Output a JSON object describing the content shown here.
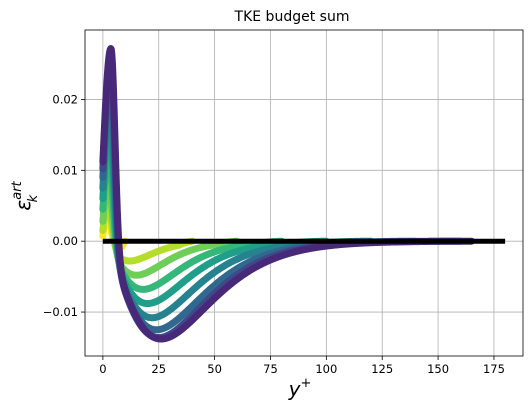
{
  "chart_data": {
    "type": "line",
    "title": "TKE budget sum",
    "xlabel": "y",
    "xlabel_superscript": "+",
    "ylabel": "ε",
    "ylabel_superscript": "art",
    "ylabel_subscript": "k",
    "xlim": [
      -8,
      188
    ],
    "ylim": [
      -0.0162,
      0.0298
    ],
    "xticks": [
      0,
      25,
      50,
      75,
      100,
      125,
      150,
      175
    ],
    "xtick_labels": [
      "0",
      "25",
      "50",
      "75",
      "100",
      "125",
      "150",
      "175"
    ],
    "yticks": [
      -0.01,
      0.0,
      0.01,
      0.02
    ],
    "ytick_labels": [
      "−0.01",
      "0.00",
      "0.01",
      "0.02"
    ],
    "grid": true,
    "legend": "none",
    "colormap": "viridis",
    "series_params": [
      {
        "color": "#fde725",
        "peak": 0.0035,
        "peak_x": 1.6,
        "start": 0.0007,
        "min": -0.0008,
        "min_x": 8,
        "xmax": 10
      },
      {
        "color": "#b5de2b",
        "peak": 0.0055,
        "peak_x": 2.0,
        "start": 0.0015,
        "min": -0.0028,
        "min_x": 12,
        "xmax": 40
      },
      {
        "color": "#6ece58",
        "peak": 0.0085,
        "peak_x": 2.3,
        "start": 0.0028,
        "min": -0.0048,
        "min_x": 15,
        "xmax": 60
      },
      {
        "color": "#35b779",
        "peak": 0.0125,
        "peak_x": 2.6,
        "start": 0.0045,
        "min": -0.0068,
        "min_x": 18,
        "xmax": 80
      },
      {
        "color": "#1f9e89",
        "peak": 0.0165,
        "peak_x": 2.9,
        "start": 0.006,
        "min": -0.0088,
        "min_x": 20,
        "xmax": 100
      },
      {
        "color": "#26828e",
        "peak": 0.02,
        "peak_x": 3.1,
        "start": 0.0075,
        "min": -0.0108,
        "min_x": 22,
        "xmax": 120
      },
      {
        "color": "#31688e",
        "peak": 0.0235,
        "peak_x": 3.3,
        "start": 0.009,
        "min": -0.0125,
        "min_x": 24,
        "xmax": 140
      },
      {
        "color": "#3e4989",
        "peak": 0.026,
        "peak_x": 3.5,
        "start": 0.0102,
        "min": -0.0136,
        "min_x": 25,
        "xmax": 160
      },
      {
        "color": "#482878",
        "peak": 0.0272,
        "peak_x": 3.6,
        "start": 0.0112,
        "min": -0.0138,
        "min_x": 26,
        "xmax": 165
      }
    ],
    "zero_line": {
      "color": "#000000",
      "xmin": 0,
      "xmax": 180,
      "y": 0.0
    }
  }
}
